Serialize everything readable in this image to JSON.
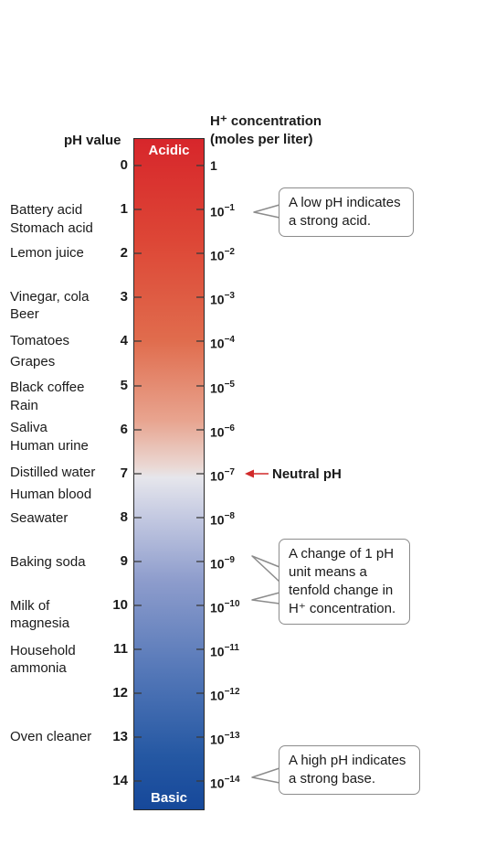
{
  "header": {
    "ph_label": "pH value",
    "conc_label_line1": "H⁺ concentration",
    "conc_label_line2": "(moles per liter)"
  },
  "bar": {
    "top_label": "Acidic",
    "bottom_label": "Basic"
  },
  "scale": [
    {
      "ph": "0",
      "base": "1",
      "exp": ""
    },
    {
      "ph": "1",
      "base": "10",
      "exp": "−1"
    },
    {
      "ph": "2",
      "base": "10",
      "exp": "−2"
    },
    {
      "ph": "3",
      "base": "10",
      "exp": "−3"
    },
    {
      "ph": "4",
      "base": "10",
      "exp": "−4"
    },
    {
      "ph": "5",
      "base": "10",
      "exp": "−5"
    },
    {
      "ph": "6",
      "base": "10",
      "exp": "−6"
    },
    {
      "ph": "7",
      "base": "10",
      "exp": "−7"
    },
    {
      "ph": "8",
      "base": "10",
      "exp": "−8"
    },
    {
      "ph": "9",
      "base": "10",
      "exp": "−9"
    },
    {
      "ph": "10",
      "base": "10",
      "exp": "−10"
    },
    {
      "ph": "11",
      "base": "10",
      "exp": "−11"
    },
    {
      "ph": "12",
      "base": "10",
      "exp": "−12"
    },
    {
      "ph": "13",
      "base": "10",
      "exp": "−13"
    },
    {
      "ph": "14",
      "base": "10",
      "exp": "−14"
    }
  ],
  "substances": [
    "Battery acid",
    "Stomach acid",
    "Lemon juice",
    "Vinegar, cola",
    "Beer",
    "Tomatoes",
    "Grapes",
    "Black coffee",
    "Rain",
    "Saliva",
    "Human urine",
    "Distilled water",
    "Human blood",
    "Seawater",
    "Baking soda",
    "Milk of",
    "magnesia",
    "Household",
    "ammonia",
    "Oven cleaner"
  ],
  "neutral_label": "Neutral pH",
  "callouts": {
    "low": [
      "A low pH indicates",
      "a strong acid."
    ],
    "change": [
      "A change of 1 pH",
      "unit means a",
      "tenfold change in",
      "H⁺ concentration."
    ],
    "high": [
      "A high pH indicates",
      "a strong base."
    ]
  },
  "colors": {
    "acidic": "#d7262b",
    "neutral": "#e6e6ec",
    "basic": "#16489a",
    "arrow": "#d12a2a"
  }
}
